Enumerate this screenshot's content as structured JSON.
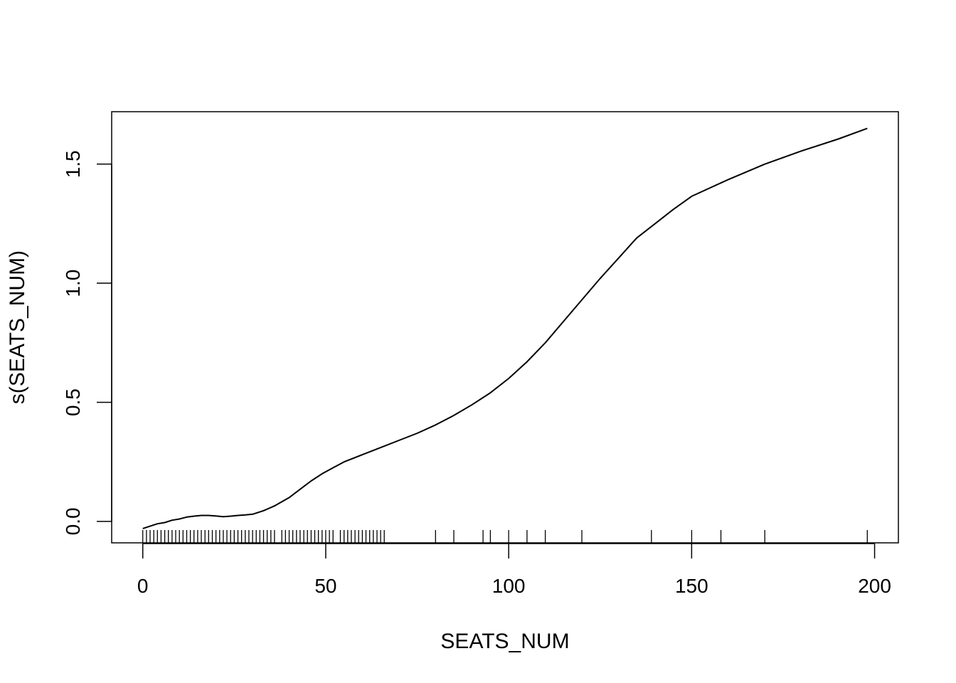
{
  "chart_data": {
    "type": "line",
    "xlabel": "SEATS_NUM",
    "ylabel": "s(SEATS_NUM)",
    "xlim": [
      -8.5,
      206.5
    ],
    "ylim": [
      -0.09,
      1.72
    ],
    "x_ticks": [
      0,
      50,
      100,
      150,
      200
    ],
    "x_tick_labels": [
      "0",
      "50",
      "100",
      "150",
      "200"
    ],
    "y_ticks": [
      0.0,
      0.5,
      1.0,
      1.5
    ],
    "y_tick_labels": [
      "0.0",
      "0.5",
      "1.0",
      "1.5"
    ],
    "grid": false,
    "legend": "none",
    "line_color": "#000000",
    "series": [
      {
        "x": [
          0,
          2,
          4,
          6,
          8,
          10,
          12,
          14,
          16,
          18,
          20,
          22,
          24,
          26,
          28,
          30,
          33,
          36,
          40,
          43,
          46,
          49,
          52,
          55,
          60,
          65,
          70,
          75,
          80,
          85,
          90,
          95,
          100,
          105,
          110,
          115,
          120,
          125,
          130,
          135,
          140,
          145,
          150,
          155,
          160,
          170,
          180,
          190,
          198
        ],
        "y": [
          -0.03,
          -0.02,
          -0.01,
          -0.005,
          0.005,
          0.01,
          0.018,
          0.022,
          0.025,
          0.025,
          0.023,
          0.02,
          0.022,
          0.025,
          0.027,
          0.03,
          0.045,
          0.065,
          0.1,
          0.135,
          0.17,
          0.2,
          0.225,
          0.25,
          0.28,
          0.31,
          0.34,
          0.37,
          0.405,
          0.445,
          0.49,
          0.54,
          0.6,
          0.67,
          0.75,
          0.84,
          0.93,
          1.02,
          1.105,
          1.19,
          1.25,
          1.31,
          1.365,
          1.4,
          1.435,
          1.5,
          1.555,
          1.605,
          1.65
        ]
      }
    ],
    "rug": [
      0,
      1,
      2,
      3,
      4,
      5,
      6,
      7,
      8,
      9,
      10,
      11,
      12,
      13,
      14,
      15,
      16,
      17,
      18,
      19,
      20,
      21,
      22,
      23,
      24,
      25,
      26,
      27,
      28,
      29,
      30,
      31,
      32,
      33,
      34,
      35,
      36,
      38,
      39,
      40,
      41,
      42,
      43,
      44,
      45,
      46,
      47,
      48,
      49,
      50,
      51,
      52,
      54,
      55,
      56,
      57,
      58,
      59,
      60,
      61,
      62,
      63,
      64,
      65,
      66,
      80,
      85,
      93,
      95,
      100,
      105,
      110,
      120,
      139,
      150,
      158,
      170,
      198
    ]
  }
}
